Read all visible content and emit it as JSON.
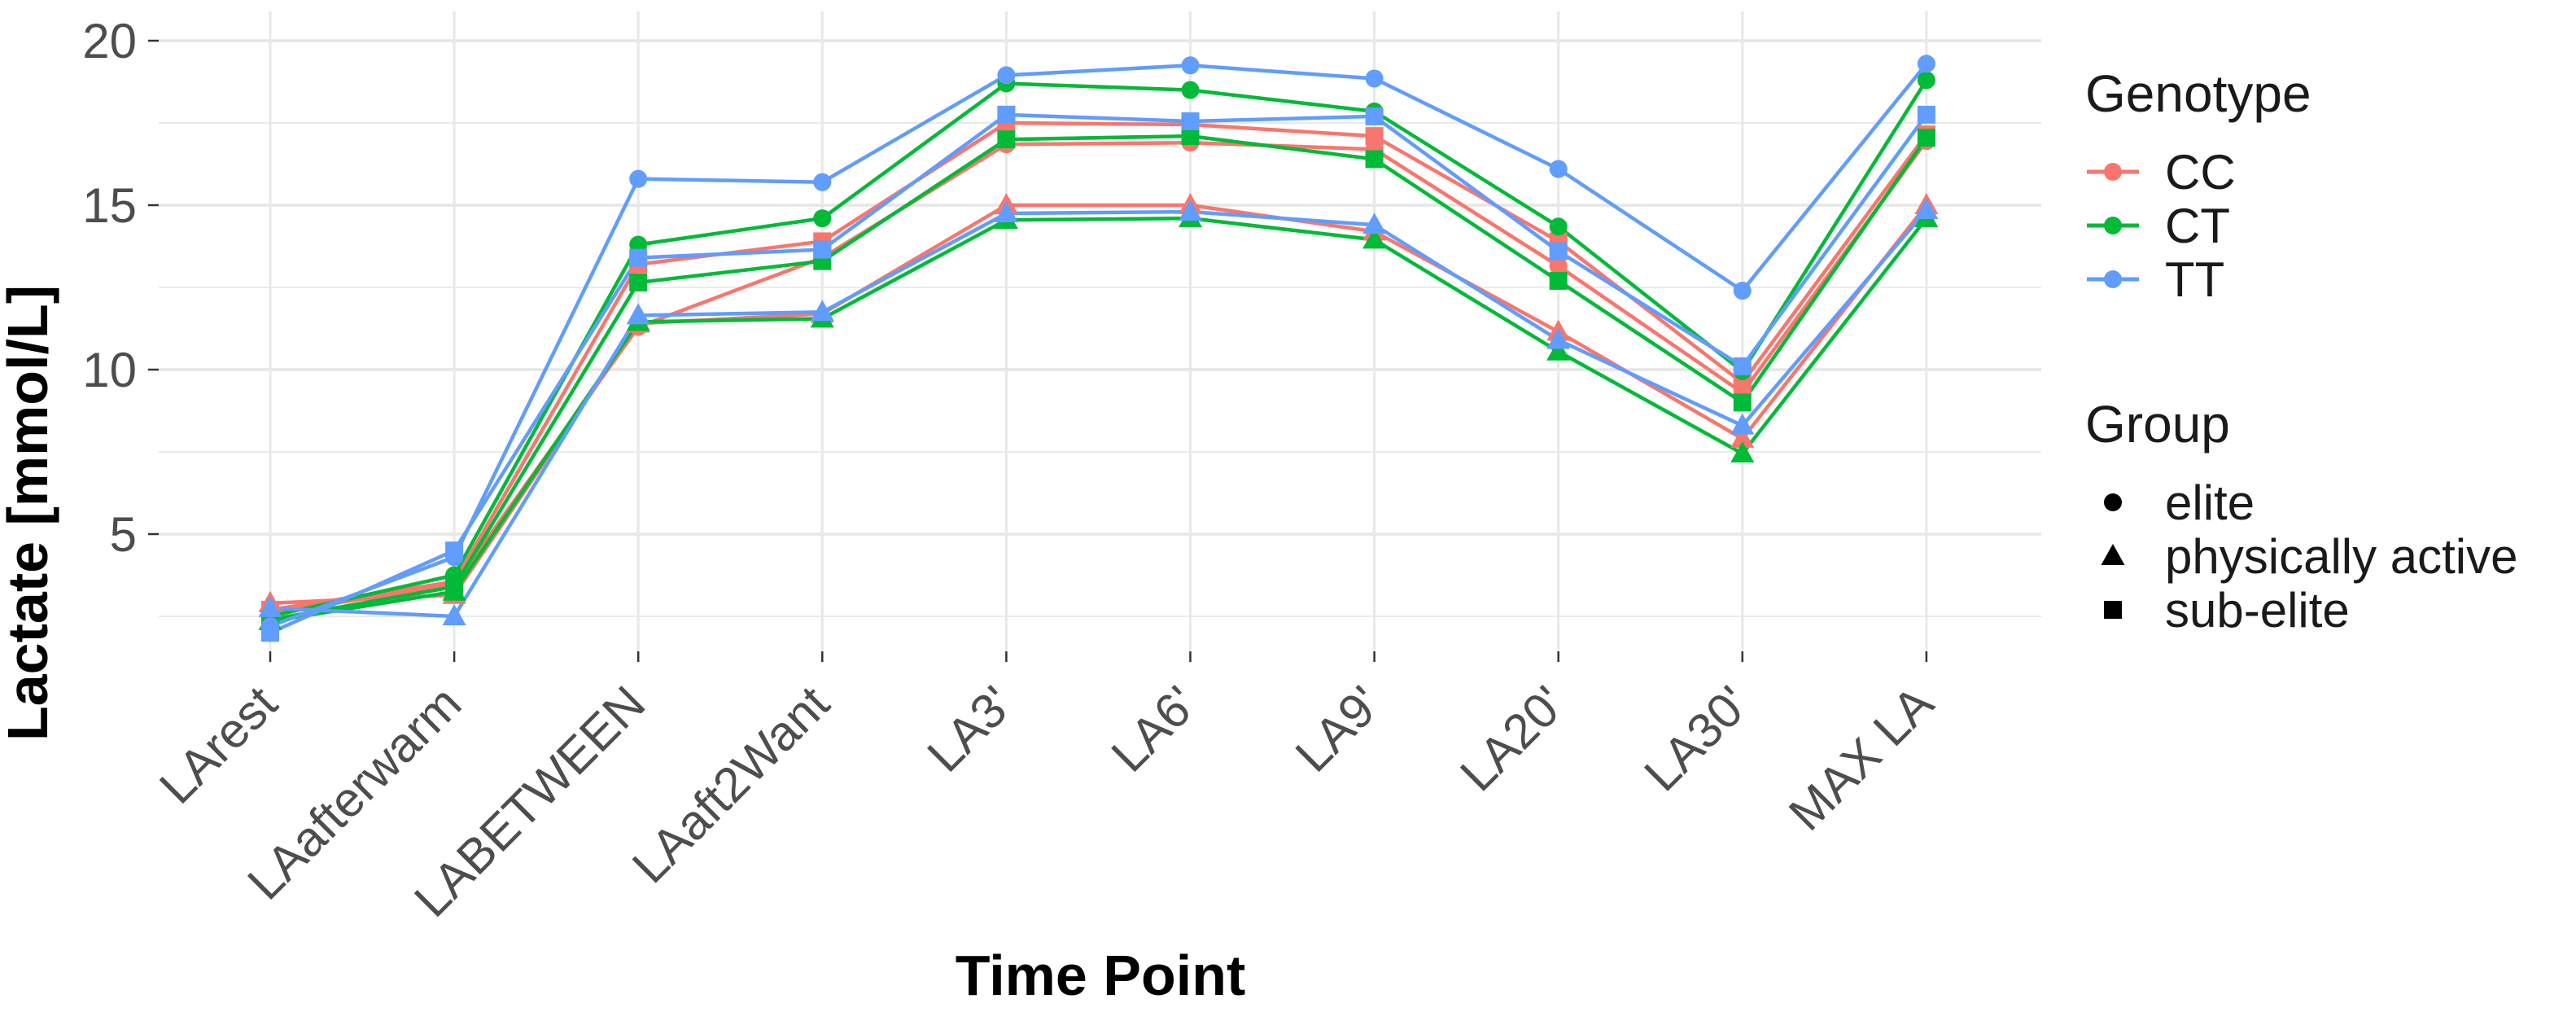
{
  "chart": {
    "y_axis": {
      "title": "Lactate [mmol/L]",
      "ticks": [
        5,
        10,
        15,
        20
      ],
      "minor_ticks": [
        2.5,
        7.5,
        12.5,
        17.5
      ],
      "range": [
        1.4,
        20.8
      ]
    },
    "x_axis": {
      "title": "Time Point",
      "categories": [
        "LArest",
        "LAafterwarm",
        "LABETWEEN",
        "LAaft2Want",
        "LA3'",
        "LA6'",
        "LA9'",
        "LA20'",
        "LA30'",
        "MAX LA"
      ]
    },
    "legend": {
      "genotype": {
        "title": "Genotype",
        "items": [
          {
            "label": "CC",
            "color": "#F8766D"
          },
          {
            "label": "CT",
            "color": "#00BA38"
          },
          {
            "label": "TT",
            "color": "#619CFF"
          }
        ]
      },
      "group": {
        "title": "Group",
        "items": [
          {
            "label": "elite",
            "shape": "circle"
          },
          {
            "label": "physically active",
            "shape": "triangle"
          },
          {
            "label": "sub-elite",
            "shape": "square"
          }
        ]
      }
    }
  },
  "chart_data": {
    "type": "line",
    "title": "",
    "xlabel": "Time Point",
    "ylabel": "Lactate [mmol/L]",
    "ylim": [
      1.4,
      20.8
    ],
    "grid": "on",
    "legend_position": "right",
    "categories": [
      "LArest",
      "LAafterwarm",
      "LABETWEEN",
      "LAaft2Want",
      "LA3'",
      "LA6'",
      "LA9'",
      "LA20'",
      "LA30'",
      "MAX LA"
    ],
    "series": [
      {
        "name": "CC elite",
        "genotype": "CC",
        "group": "elite",
        "shape": "circle",
        "color": "#F8766D",
        "values": [
          2.6,
          3.45,
          11.3,
          13.4,
          16.85,
          16.9,
          16.7,
          13.15,
          9.3,
          16.95
        ]
      },
      {
        "name": "CC physically active",
        "genotype": "CC",
        "group": "physically active",
        "shape": "triangle",
        "color": "#F8766D",
        "values": [
          2.9,
          3.15,
          11.4,
          11.7,
          15.0,
          15.0,
          14.2,
          11.15,
          7.9,
          15.0
        ]
      },
      {
        "name": "CC sub-elite",
        "genotype": "CC",
        "group": "sub-elite",
        "shape": "square",
        "color": "#F8766D",
        "values": [
          2.7,
          3.55,
          13.2,
          13.9,
          17.5,
          17.45,
          17.1,
          13.9,
          9.6,
          17.15
        ]
      },
      {
        "name": "CT elite",
        "genotype": "CT",
        "group": "elite",
        "shape": "circle",
        "color": "#00BA38",
        "values": [
          2.5,
          3.75,
          13.8,
          14.6,
          18.7,
          18.5,
          17.85,
          14.35,
          9.95,
          18.8
        ]
      },
      {
        "name": "CT physically active",
        "genotype": "CT",
        "group": "physically active",
        "shape": "triangle",
        "color": "#00BA38",
        "values": [
          2.35,
          3.25,
          11.45,
          11.55,
          14.55,
          14.6,
          13.95,
          10.55,
          7.45,
          14.6
        ]
      },
      {
        "name": "CT sub-elite",
        "genotype": "CT",
        "group": "sub-elite",
        "shape": "square",
        "color": "#00BA38",
        "values": [
          2.4,
          3.4,
          12.65,
          13.3,
          17.0,
          17.1,
          16.4,
          12.7,
          9.0,
          17.05
        ]
      },
      {
        "name": "TT elite",
        "genotype": "TT",
        "group": "elite",
        "shape": "circle",
        "color": "#619CFF",
        "values": [
          2.2,
          4.3,
          15.8,
          15.7,
          18.95,
          19.25,
          18.85,
          16.1,
          12.4,
          19.3
        ]
      },
      {
        "name": "TT physically active",
        "genotype": "TT",
        "group": "physically active",
        "shape": "triangle",
        "color": "#619CFF",
        "values": [
          2.75,
          2.5,
          11.65,
          11.75,
          14.75,
          14.8,
          14.4,
          10.9,
          8.3,
          14.85
        ]
      },
      {
        "name": "TT sub-elite",
        "genotype": "TT",
        "group": "sub-elite",
        "shape": "square",
        "color": "#619CFF",
        "values": [
          2.0,
          4.5,
          13.4,
          13.65,
          17.75,
          17.55,
          17.7,
          13.6,
          10.1,
          17.75
        ]
      }
    ]
  }
}
